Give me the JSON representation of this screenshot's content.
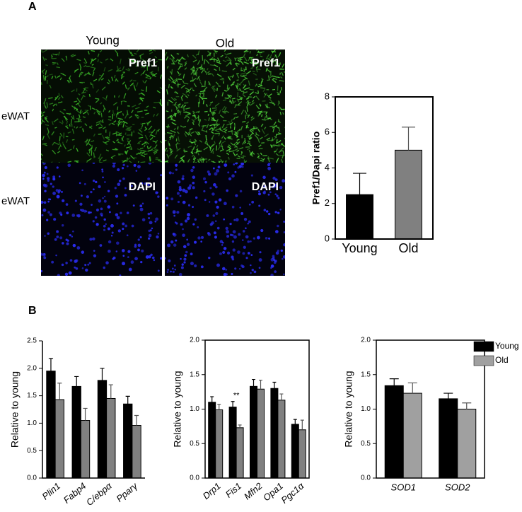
{
  "figure": {
    "panel_a": "A",
    "panel_b": "B",
    "col_young": "Young",
    "col_old": "Old",
    "row_top_label": "eWAT",
    "row_bottom_label": "eWAT",
    "stain_top_young": "Pref1",
    "stain_top_old": "Pref1",
    "stain_bottom_young": "DAPI",
    "stain_bottom_old": "DAPI"
  },
  "chart_data": [
    {
      "type": "bar",
      "ylabel": "Pref1/Dapi ratio",
      "categories": [
        "Young",
        "Old"
      ],
      "values": [
        2.5,
        5.0
      ],
      "errors": [
        1.2,
        1.3
      ],
      "colors": [
        "#000000",
        "#808080"
      ],
      "ylim": [
        0,
        8
      ],
      "yticks": [
        0,
        2,
        4,
        6,
        8
      ],
      "frame": true
    },
    {
      "type": "bar",
      "ylabel": "Relative to young",
      "categories": [
        "Plin1",
        "Fabp4",
        "C/ebpα",
        "Pparγ"
      ],
      "series": [
        {
          "color": "#000000",
          "values": [
            1.95,
            1.67,
            1.78,
            1.35
          ],
          "errors": [
            0.23,
            0.18,
            0.22,
            0.14
          ]
        },
        {
          "color": "#808080",
          "values": [
            1.43,
            1.05,
            1.45,
            0.96
          ],
          "errors": [
            0.3,
            0.22,
            0.25,
            0.18
          ]
        }
      ],
      "ylim": [
        0,
        2.5
      ],
      "yticks": [
        {
          "value": 0,
          "label": "0.0"
        },
        {
          "value": 0.5,
          "label": "0.5"
        },
        {
          "value": 1,
          "label": "1.0"
        },
        {
          "value": 1.5,
          "label": "1.5"
        },
        {
          "value": 2,
          "label": "2.0"
        },
        {
          "value": 2.5,
          "label": "2.5"
        }
      ],
      "frame": false
    },
    {
      "type": "bar",
      "ylabel": "Relative to young",
      "categories": [
        "Drp1",
        "Fis1",
        "Mfn2",
        "Opa1",
        "Pgc1α"
      ],
      "series": [
        {
          "color": "#000000",
          "values": [
            1.1,
            1.03,
            1.33,
            1.3,
            0.78
          ],
          "errors": [
            0.08,
            0.08,
            0.1,
            0.09,
            0.07
          ]
        },
        {
          "color": "#808080",
          "values": [
            0.99,
            0.73,
            1.29,
            1.13,
            0.7
          ],
          "errors": [
            0.08,
            0.04,
            0.13,
            0.09,
            0.14
          ]
        }
      ],
      "annotation": "**",
      "ylim": [
        0,
        2.0
      ],
      "yticks": [
        {
          "value": 0,
          "label": "0.0"
        },
        {
          "value": 0.5,
          "label": "0.5"
        },
        {
          "value": 1,
          "label": "1.0"
        },
        {
          "value": 1.5,
          "label": "1.5"
        },
        {
          "value": 2,
          "label": "2.0"
        }
      ],
      "frame": true
    },
    {
      "type": "bar",
      "ylabel": "Relative to young",
      "categories": [
        "SOD1",
        "SOD2"
      ],
      "series": [
        {
          "name": "Young",
          "color": "#000000",
          "values": [
            1.34,
            1.15
          ],
          "errors": [
            0.1,
            0.08
          ]
        },
        {
          "name": "Old",
          "color": "#a0a0a0",
          "values": [
            1.23,
            1.0
          ],
          "errors": [
            0.15,
            0.09
          ]
        }
      ],
      "ylim": [
        0,
        2.0
      ],
      "yticks": [
        {
          "value": 0,
          "label": "0.0"
        },
        {
          "value": 0.5,
          "label": "0.5"
        },
        {
          "value": 1,
          "label": "1.0"
        },
        {
          "value": 1.5,
          "label": "1.5"
        },
        {
          "value": 2,
          "label": "2.0"
        }
      ],
      "frame": true,
      "legend": "outside-right"
    }
  ]
}
